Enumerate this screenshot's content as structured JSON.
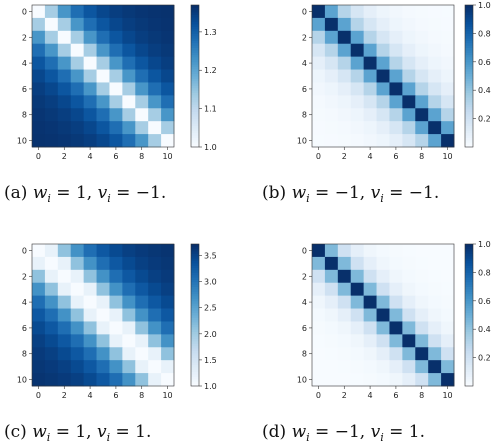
{
  "colors": {
    "low": "#f7fbff",
    "high": "#08306b"
  },
  "chart_data": [
    {
      "type": "heatmap",
      "caption": {
        "label": "(a)",
        "w": "1",
        "v": "−1"
      },
      "x_ticks": [
        0,
        2,
        4,
        6,
        8,
        10
      ],
      "y_ticks": [
        0,
        2,
        4,
        6,
        8,
        10
      ],
      "n": 11,
      "color_range": [
        1.0,
        1.37
      ],
      "colorbar_ticks": [
        "1.0",
        "1.1",
        "1.2",
        "1.3"
      ],
      "colorbar_tick_values": [
        1.0,
        1.1,
        1.2,
        1.3
      ],
      "pattern": {
        "kind": "distance",
        "diag": 1.0,
        "near": 1.13,
        "far": 1.37,
        "k": 0.5
      }
    },
    {
      "type": "heatmap",
      "caption": {
        "label": "(b)",
        "w": "−1",
        "v": "−1"
      },
      "x_ticks": [
        0,
        2,
        4,
        6,
        8,
        10
      ],
      "y_ticks": [
        0,
        2,
        4,
        6,
        8,
        10
      ],
      "n": 11,
      "color_range": [
        0.0,
        1.0
      ],
      "colorbar_ticks": [
        "0.2",
        "0.4",
        "0.6",
        "0.8",
        "1.0"
      ],
      "colorbar_tick_values": [
        0.2,
        0.4,
        0.6,
        0.8,
        1.0
      ],
      "pattern": {
        "kind": "decay",
        "diag": 1.0,
        "r": 0.55
      }
    },
    {
      "type": "heatmap",
      "caption": {
        "label": "(c)",
        "w": "1",
        "v": "1"
      },
      "x_ticks": [
        0,
        2,
        4,
        6,
        8,
        10
      ],
      "y_ticks": [
        0,
        2,
        4,
        6,
        8,
        10
      ],
      "n": 11,
      "color_range": [
        1.0,
        3.72
      ],
      "colorbar_ticks": [
        "1.0",
        "1.5",
        "2.0",
        "2.5",
        "3.0",
        "3.5"
      ],
      "colorbar_tick_values": [
        1.0,
        1.5,
        2.0,
        2.5,
        3.0,
        3.5
      ],
      "pattern": {
        "kind": "distance",
        "diag": 1.0,
        "near": 1.2,
        "far": 3.72,
        "k": 0.45
      }
    },
    {
      "type": "heatmap",
      "caption": {
        "label": "(d)",
        "w": "−1",
        "v": "1"
      },
      "x_ticks": [
        0,
        2,
        4,
        6,
        8,
        10
      ],
      "y_ticks": [
        0,
        2,
        4,
        6,
        8,
        10
      ],
      "n": 11,
      "color_range": [
        0.0,
        1.0
      ],
      "colorbar_ticks": [
        "0.2",
        "0.4",
        "0.6",
        "0.8",
        "1.0"
      ],
      "colorbar_tick_values": [
        0.2,
        0.4,
        0.6,
        0.8,
        1.0
      ],
      "pattern": {
        "kind": "decay",
        "diag": 1.0,
        "r": 0.45
      }
    }
  ]
}
